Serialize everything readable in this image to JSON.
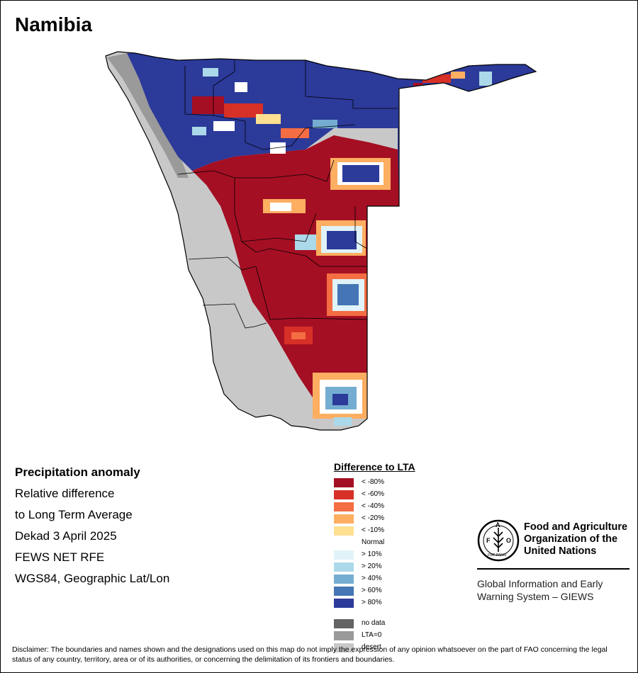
{
  "title": "Namibia",
  "info": {
    "heading": "Precipitation anomaly",
    "line1": "Relative difference",
    "line2": "to Long Term Average",
    "period": "Dekad 3 April 2025",
    "source": "FEWS NET RFE",
    "projection": "WGS84, Geographic Lat/Lon"
  },
  "legend": {
    "title": "Difference to LTA",
    "classes": [
      {
        "label": "< -80%",
        "color": "#a50f23"
      },
      {
        "label": "< -60%",
        "color": "#d73027"
      },
      {
        "label": "< -40%",
        "color": "#f46d43"
      },
      {
        "label": "< -20%",
        "color": "#fdae61"
      },
      {
        "label": "< -10%",
        "color": "#fee090"
      },
      {
        "label": "Normal",
        "color": "#ffffff"
      },
      {
        "label": "> 10%",
        "color": "#e0f3f8"
      },
      {
        "label": "> 20%",
        "color": "#abd9e9"
      },
      {
        "label": "> 40%",
        "color": "#74add1"
      },
      {
        "label": "> 60%",
        "color": "#4575b4"
      },
      {
        "label": "> 80%",
        "color": "#2c3a9a"
      }
    ],
    "other": [
      {
        "label": "no data",
        "color": "#636363"
      },
      {
        "label": "LTA=0",
        "color": "#9a9a9a"
      },
      {
        "label": "desert",
        "color": "#c8c8c8"
      }
    ]
  },
  "branding": {
    "logo_icon": "fao-logo-icon",
    "logo_letters": "F A O",
    "logo_motto": "FIAT PANIS",
    "org_line1": "Food and Agriculture",
    "org_line2": "Organization of the",
    "org_line3": "United Nations",
    "system_line1": "Global Information and Early",
    "system_line2": "Warning System – GIEWS"
  },
  "disclaimer": "Disclaimer: The boundaries and names shown and the designations used on this map do not imply the expression of any opinion whatsoever on the part of FAO concerning the legal status of any country, territory, area or of its authorities, or concerning the delimitation of its frontiers and boundaries."
}
